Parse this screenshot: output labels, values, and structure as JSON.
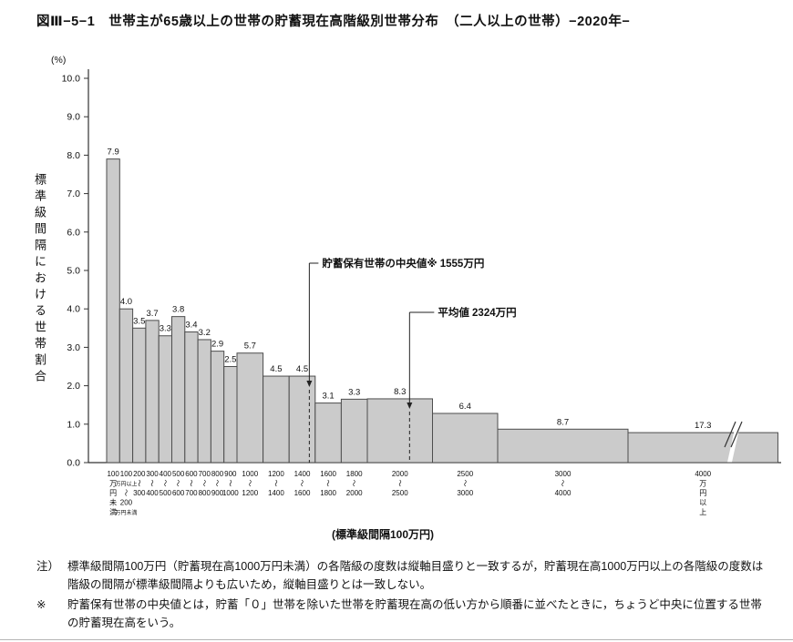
{
  "chart_data": {
    "type": "bar",
    "title": "図Ⅲ−5−1　世帯主が65歳以上の世帯の貯蓄現在高階級別世帯分布　（二人以上の世帯）−2020年−",
    "y_unit": "(%)",
    "ylabel": "標準級間隔における世帯割合",
    "ylim": [
      0,
      10
    ],
    "ytick_step": 1,
    "x_axis_note": "(標準級間隔100万円)",
    "bar_fill": "#cbcbcb",
    "bar_stroke": "#4d4d4d",
    "bars": [
      {
        "range": "0-100",
        "label_lines": [
          "100",
          "万",
          "円",
          "未",
          "満"
        ],
        "units": 1,
        "value": 7.9
      },
      {
        "range": "100-200",
        "label_lines": [
          "100",
          "万円以上",
          "〜",
          "200",
          "万円未満"
        ],
        "units": 1,
        "value": 4.0
      },
      {
        "range": "200-300",
        "label_lines": [
          "200",
          "〜",
          "300"
        ],
        "units": 1,
        "value": 3.5
      },
      {
        "range": "300-400",
        "label_lines": [
          "300",
          "〜",
          "400"
        ],
        "units": 1,
        "value": 3.7
      },
      {
        "range": "400-500",
        "label_lines": [
          "400",
          "〜",
          "500"
        ],
        "units": 1,
        "value": 3.3
      },
      {
        "range": "500-600",
        "label_lines": [
          "500",
          "〜",
          "600"
        ],
        "units": 1,
        "value": 3.8
      },
      {
        "range": "600-700",
        "label_lines": [
          "600",
          "〜",
          "700"
        ],
        "units": 1,
        "value": 3.4
      },
      {
        "range": "700-800",
        "label_lines": [
          "700",
          "〜",
          "800"
        ],
        "units": 1,
        "value": 3.2
      },
      {
        "range": "800-900",
        "label_lines": [
          "800",
          "〜",
          "900"
        ],
        "units": 1,
        "value": 2.9
      },
      {
        "range": "900-1000",
        "label_lines": [
          "900",
          "〜",
          "1000"
        ],
        "units": 1,
        "value": 2.5
      },
      {
        "range": "1000-1200",
        "label_lines": [
          "1000",
          "〜",
          "1200"
        ],
        "units": 2,
        "value": 5.7
      },
      {
        "range": "1200-1400",
        "label_lines": [
          "1200",
          "〜",
          "1400"
        ],
        "units": 2,
        "value": 4.5
      },
      {
        "range": "1400-1600",
        "label_lines": [
          "1400",
          "〜",
          "1600"
        ],
        "units": 2,
        "value": 4.5
      },
      {
        "range": "1600-1800",
        "label_lines": [
          "1600",
          "〜",
          "1800"
        ],
        "units": 2,
        "value": 3.1
      },
      {
        "range": "1800-2000",
        "label_lines": [
          "1800",
          "〜",
          "2000"
        ],
        "units": 2,
        "value": 3.3
      },
      {
        "range": "2000-2500",
        "label_lines": [
          "2000",
          "〜",
          "2500"
        ],
        "units": 5,
        "value": 8.3
      },
      {
        "range": "2500-3000",
        "label_lines": [
          "2500",
          "〜",
          "3000"
        ],
        "units": 5,
        "value": 6.4
      },
      {
        "range": "3000-4000",
        "label_lines": [
          "3000",
          "〜",
          "4000"
        ],
        "units": 10,
        "value": 8.7
      },
      {
        "range": "4000+",
        "label_lines": [
          "4000",
          "万",
          "円",
          "以",
          "上"
        ],
        "units": 11.5,
        "value": 17.3,
        "draw_height_pct": 0.78,
        "axis_break": true
      }
    ],
    "annotations": [
      {
        "label": "貯蓄保有世帯の中央値※ 1555万円",
        "x_value": 1555
      },
      {
        "label": "平均値 2324万円",
        "x_value": 2324
      }
    ]
  },
  "notes": [
    {
      "prefix": "注）",
      "text": "標準級間隔100万円（貯蓄現在高1000万円未満）の各階級の度数は縦軸目盛りと一致するが，貯蓄現在高1000万円以上の各階級の度数は階級の間隔が標準級間隔よりも広いため，縦軸目盛りとは一致しない。"
    },
    {
      "prefix": "※",
      "text": "貯蓄保有世帯の中央値とは，貯蓄「０」世帯を除いた世帯を貯蓄現在高の低い方から順番に並べたときに，ちょうど中央に位置する世帯の貯蓄現在高をいう。"
    }
  ]
}
